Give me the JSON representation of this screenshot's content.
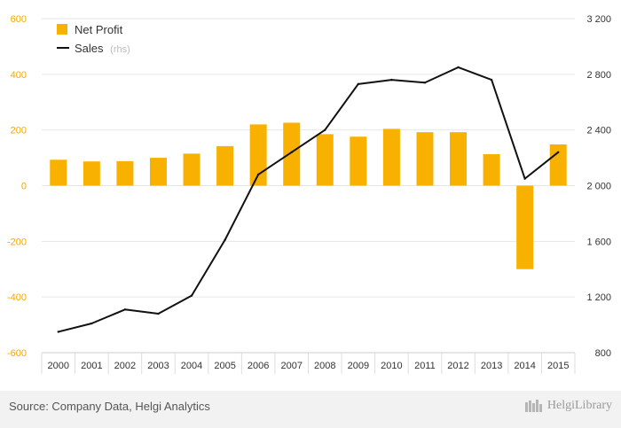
{
  "chart_data": {
    "type": "bar",
    "categories": [
      "2000",
      "2001",
      "2002",
      "2003",
      "2004",
      "2005",
      "2006",
      "2007",
      "2008",
      "2009",
      "2010",
      "2011",
      "2012",
      "2013",
      "2014",
      "2015"
    ],
    "series": [
      {
        "name": "Net Profit",
        "type": "bar",
        "axis": "left",
        "color": "#F9B100",
        "values": [
          93,
          87,
          88,
          100,
          115,
          142,
          220,
          226,
          185,
          176,
          204,
          192,
          192,
          113,
          -300,
          148
        ]
      },
      {
        "name": "Sales",
        "type": "line",
        "axis": "right",
        "color": "#111111",
        "values": [
          950,
          1010,
          1110,
          1080,
          1210,
          1610,
          2080,
          2240,
          2400,
          2730,
          2760,
          2740,
          2850,
          2760,
          2050,
          2240
        ]
      }
    ],
    "legend_sub": "(rhs)",
    "yleft_ticks": [
      "600",
      "400",
      "200",
      "0",
      "-200",
      "-400",
      "-600"
    ],
    "yleft_lim": [
      -600,
      600
    ],
    "yright_ticks": [
      "3 200",
      "2 800",
      "2 400",
      "2 000",
      "1 600",
      "1 200",
      "800"
    ],
    "yright_lim": [
      800,
      3200
    ],
    "grid": true,
    "legend_position": "top-left"
  },
  "footer": {
    "source": "Source: Company Data, Helgi Analytics",
    "brand": "HelgiLibrary"
  },
  "colors": {
    "accent": "#F9B100",
    "left_axis_text": "#F2A900",
    "line": "#111111"
  }
}
